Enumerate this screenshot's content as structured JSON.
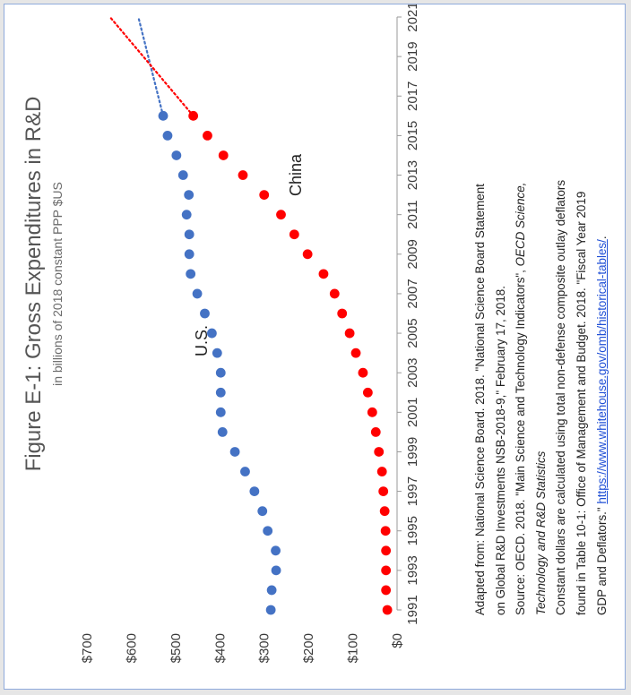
{
  "chart_data": {
    "type": "scatter",
    "title": "Figure E-1: Gross Expenditures in R&D",
    "subtitle": "in billions of 2018 constant PPP $US",
    "y_ticks": [
      "$0",
      "$100",
      "$200",
      "$300",
      "$400",
      "$500",
      "$600",
      "$700"
    ],
    "ylim": [
      0,
      700
    ],
    "x_ticks": [
      "1991",
      "1993",
      "1995",
      "1997",
      "1999",
      "2001",
      "2003",
      "2005",
      "2007",
      "2009",
      "2011",
      "2013",
      "2015",
      "2017",
      "2019",
      "2021"
    ],
    "xlim": [
      1991,
      2021
    ],
    "orientation": "rotated-90-counterclockwise",
    "grid": false,
    "series": [
      {
        "name": "U.S.",
        "color": "#4472c4",
        "x": [
          1991,
          1992,
          1993,
          1994,
          1995,
          1996,
          1997,
          1998,
          1999,
          2000,
          2001,
          2002,
          2003,
          2004,
          2005,
          2006,
          2007,
          2008,
          2009,
          2010,
          2011,
          2012,
          2013,
          2014,
          2015,
          2016
        ],
        "y": [
          285,
          283,
          273,
          274,
          292,
          304,
          322,
          343,
          366,
          394,
          398,
          398,
          398,
          406,
          418,
          434,
          451,
          466,
          469,
          469,
          475,
          470,
          483,
          498,
          518,
          528
        ],
        "trend": {
          "x": [
            2016,
            2021
          ],
          "y": [
            528,
            584
          ]
        }
      },
      {
        "name": "China",
        "color": "#ff0000",
        "x": [
          1991,
          1992,
          1993,
          1994,
          1995,
          1996,
          1997,
          1998,
          1999,
          2000,
          2001,
          2002,
          2003,
          2004,
          2005,
          2006,
          2007,
          2008,
          2009,
          2010,
          2011,
          2012,
          2013,
          2014,
          2015,
          2016
        ],
        "y": [
          22,
          25,
          25,
          25,
          26,
          28,
          31,
          34,
          41,
          48,
          56,
          66,
          77,
          93,
          107,
          124,
          141,
          166,
          202,
          232,
          262,
          300,
          348,
          392,
          428,
          460
        ],
        "trend": {
          "x": [
            2016,
            2021
          ],
          "y": [
            460,
            648
          ]
        }
      }
    ]
  },
  "notes": {
    "line1": "Adapted from: National Science Board. 2018. \"National Science Board Statement",
    "line2": "on Global R&D Investments NSB-2018-9,\" February 17, 2018.",
    "line3a": "Source: OECD. 2018. \"Main Science and Technology Indicators\", ",
    "line3b": "OECD Science,",
    "line4": "Technology and R&D Statistics",
    "line5": "Constant dollars are calculated using total non-defense  composite outlay deflators",
    "line6": "found in Table 10-1: Office of Management  and Budget. 2018. \"Fiscal Year 2019",
    "line7": "GDP and Deflators.\" ",
    "link": "https://www.whitehouse.gov/omb/historical-tables/",
    "link_end": "."
  }
}
